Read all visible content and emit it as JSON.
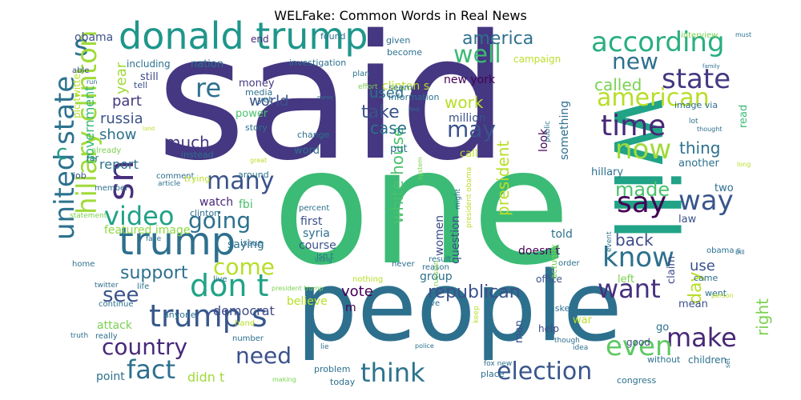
{
  "chart": {
    "title": "WELFake: Common Words in Real News"
  },
  "chart_data": {
    "type": "wordcloud",
    "title": "WELFake: Common Words in Real News",
    "words": [
      {
        "text": "said",
        "size": 215,
        "color": "#453781"
      },
      {
        "text": "one",
        "size": 200,
        "color": "#3bbb75"
      },
      {
        "text": "people",
        "size": 120,
        "color": "#2d708e"
      },
      {
        "text": "will",
        "size": 110,
        "color": "#20a386"
      },
      {
        "text": "donald trump",
        "size": 46,
        "color": "#1f968b"
      },
      {
        "text": "trump",
        "size": 48,
        "color": "#2d708e"
      },
      {
        "text": "trump s",
        "size": 38,
        "color": "#38588c"
      },
      {
        "text": "according",
        "size": 34,
        "color": "#29af7f"
      },
      {
        "text": "state",
        "size": 34,
        "color": "#453781"
      },
      {
        "text": "american",
        "size": 30,
        "color": "#b8de29"
      },
      {
        "text": "time",
        "size": 36,
        "color": "#482878"
      },
      {
        "text": "now",
        "size": 34,
        "color": "#a0da39"
      },
      {
        "text": "say",
        "size": 36,
        "color": "#440154"
      },
      {
        "text": "way",
        "size": 34,
        "color": "#39568c"
      },
      {
        "text": "know",
        "size": 34,
        "color": "#2d708e"
      },
      {
        "text": "want",
        "size": 32,
        "color": "#46307e"
      },
      {
        "text": "make",
        "size": 32,
        "color": "#482878"
      },
      {
        "text": "even",
        "size": 34,
        "color": "#5ec962"
      },
      {
        "text": "election",
        "size": 30,
        "color": "#39568c"
      },
      {
        "text": "think",
        "size": 32,
        "color": "#2c728e"
      },
      {
        "text": "fact",
        "size": 32,
        "color": "#2d708e"
      },
      {
        "text": "country",
        "size": 28,
        "color": "#482878"
      },
      {
        "text": "need",
        "size": 28,
        "color": "#3b528b"
      },
      {
        "text": "don t",
        "size": 38,
        "color": "#20a386"
      },
      {
        "text": "come",
        "size": 28,
        "color": "#b8de29"
      },
      {
        "text": "going",
        "size": 28,
        "color": "#2d708e"
      },
      {
        "text": "video",
        "size": 32,
        "color": "#1fa187"
      },
      {
        "text": "many",
        "size": 30,
        "color": "#3b528b"
      },
      {
        "text": "us",
        "size": 44,
        "color": "#472d7b"
      },
      {
        "text": "s",
        "size": 36,
        "color": "#2c728e"
      },
      {
        "text": "re",
        "size": 32,
        "color": "#2d708e"
      },
      {
        "text": "well",
        "size": 30,
        "color": "#3bbb75"
      },
      {
        "text": "new",
        "size": 28,
        "color": "#2d708e"
      },
      {
        "text": "may",
        "size": 28,
        "color": "#3b528b"
      },
      {
        "text": "united state",
        "size": 34,
        "color": "#2c728e"
      },
      {
        "text": "hillary clinton",
        "size": 34,
        "color": "#a0da39"
      },
      {
        "text": "c",
        "size": 26,
        "color": "#1f9e89"
      },
      {
        "text": "america",
        "size": 22,
        "color": "#2d708e"
      },
      {
        "text": "president",
        "size": 20,
        "color": "#b8de29"
      },
      {
        "text": "white house",
        "size": 20,
        "color": "#4ac16d"
      },
      {
        "text": "republican",
        "size": 22,
        "color": "#3b528b"
      },
      {
        "text": "see",
        "size": 26,
        "color": "#3b528b"
      },
      {
        "text": "support",
        "size": 22,
        "color": "#2d708e"
      },
      {
        "text": "made",
        "size": 24,
        "color": "#4ac16d"
      },
      {
        "text": "back",
        "size": 20,
        "color": "#3e4a89"
      },
      {
        "text": "called",
        "size": 20,
        "color": "#7ad151"
      },
      {
        "text": "work",
        "size": 20,
        "color": "#b8de29"
      },
      {
        "text": "case",
        "size": 20,
        "color": "#2c728e"
      },
      {
        "text": "take",
        "size": 22,
        "color": "#3b528b"
      },
      {
        "text": "used",
        "size": 18,
        "color": "#2d708e"
      },
      {
        "text": "world",
        "size": 18,
        "color": "#3b528b"
      },
      {
        "text": "part",
        "size": 18,
        "color": "#453781"
      },
      {
        "text": "russia",
        "size": 18,
        "color": "#3b528b"
      },
      {
        "text": "much",
        "size": 20,
        "color": "#453781"
      },
      {
        "text": "show",
        "size": 18,
        "color": "#2c728e"
      },
      {
        "text": "report",
        "size": 16,
        "color": "#2c728e"
      },
      {
        "text": "government",
        "size": 16,
        "color": "#35b779"
      },
      {
        "text": "year",
        "size": 18,
        "color": "#a0da39"
      },
      {
        "text": "thing",
        "size": 20,
        "color": "#2d708e"
      },
      {
        "text": "day",
        "size": 22,
        "color": "#b8de29"
      },
      {
        "text": "use",
        "size": 18,
        "color": "#3b528b"
      },
      {
        "text": "right",
        "size": 20,
        "color": "#7ad151"
      },
      {
        "text": "vote",
        "size": 18,
        "color": "#440154"
      },
      {
        "text": "democrat",
        "size": 16,
        "color": "#3e4a89"
      },
      {
        "text": "fbi",
        "size": 14,
        "color": "#4ac16d"
      },
      {
        "text": "watch",
        "size": 14,
        "color": "#482878"
      },
      {
        "text": "saying",
        "size": 14,
        "color": "#2d708e"
      },
      {
        "text": "featured image",
        "size": 14,
        "color": "#8fd744"
      },
      {
        "text": "didn t",
        "size": 16,
        "color": "#a0da39"
      },
      {
        "text": "point",
        "size": 14,
        "color": "#2d708e"
      },
      {
        "text": "attack",
        "size": 14,
        "color": "#7ad151"
      },
      {
        "text": "obama",
        "size": 14,
        "color": "#3b528b"
      },
      {
        "text": "end",
        "size": 12,
        "color": "#482878"
      },
      {
        "text": "found",
        "size": 11,
        "color": "#2d708e"
      },
      {
        "text": "money",
        "size": 13,
        "color": "#453781"
      },
      {
        "text": "still",
        "size": 13,
        "color": "#3e4a89"
      },
      {
        "text": "nation",
        "size": 13,
        "color": "#2d708e"
      },
      {
        "text": "including",
        "size": 12,
        "color": "#2d708e"
      },
      {
        "text": "clinton s",
        "size": 14,
        "color": "#b8de29"
      },
      {
        "text": "campaign",
        "size": 12,
        "color": "#b8de29"
      },
      {
        "text": "new york",
        "size": 14,
        "color": "#440154"
      },
      {
        "text": "million",
        "size": 14,
        "color": "#3b528b"
      },
      {
        "text": "look",
        "size": 14,
        "color": "#440154"
      },
      {
        "text": "something",
        "size": 14,
        "color": "#2d708e"
      },
      {
        "text": "first",
        "size": 14,
        "color": "#3b528b"
      },
      {
        "text": "syria",
        "size": 14,
        "color": "#2d708e"
      },
      {
        "text": "course",
        "size": 14,
        "color": "#3b528b"
      },
      {
        "text": "women",
        "size": 14,
        "color": "#3e4a89"
      },
      {
        "text": "question",
        "size": 14,
        "color": "#3b528b"
      },
      {
        "text": "group",
        "size": 14,
        "color": "#2c728e"
      },
      {
        "text": "believe",
        "size": 14,
        "color": "#b8de29"
      },
      {
        "text": "m",
        "size": 14,
        "color": "#440154"
      },
      {
        "text": "told",
        "size": 14,
        "color": "#2d708e"
      },
      {
        "text": "doesn t",
        "size": 14,
        "color": "#440154"
      },
      {
        "text": "hillary",
        "size": 13,
        "color": "#2d708e"
      },
      {
        "text": "another",
        "size": 13,
        "color": "#2d708e"
      },
      {
        "text": "two",
        "size": 13,
        "color": "#2d708e"
      },
      {
        "text": "law",
        "size": 13,
        "color": "#3b528b"
      },
      {
        "text": "claim",
        "size": 13,
        "color": "#3e4a89"
      },
      {
        "text": "left",
        "size": 13,
        "color": "#7ad151"
      },
      {
        "text": "mean",
        "size": 13,
        "color": "#3b528b"
      },
      {
        "text": "go",
        "size": 13,
        "color": "#2c728e"
      },
      {
        "text": "war",
        "size": 13,
        "color": "#b8de29"
      },
      {
        "text": "man",
        "size": 13,
        "color": "#3b528b"
      },
      {
        "text": "help",
        "size": 12,
        "color": "#3e4a89"
      },
      {
        "text": "good",
        "size": 12,
        "color": "#3e4a89"
      },
      {
        "text": "went",
        "size": 11,
        "color": "#2d708e"
      },
      {
        "text": "came",
        "size": 11,
        "color": "#2d708e"
      },
      {
        "text": "children",
        "size": 12,
        "color": "#2d708e"
      },
      {
        "text": "without",
        "size": 11,
        "color": "#2d708e"
      },
      {
        "text": "asked",
        "size": 11,
        "color": "#2d708e"
      },
      {
        "text": "office",
        "size": 12,
        "color": "#3b528b"
      },
      {
        "text": "order",
        "size": 10,
        "color": "#2d708e"
      },
      {
        "text": "actually",
        "size": 11,
        "color": "#7ad151"
      },
      {
        "text": "read",
        "size": 13,
        "color": "#3bbb75"
      },
      {
        "text": "congress",
        "size": 11,
        "color": "#2d708e"
      },
      {
        "text": "image via",
        "size": 11,
        "color": "#2d708e"
      },
      {
        "text": "interview",
        "size": 10,
        "color": "#7ad151"
      },
      {
        "text": "pic twitter",
        "size": 12,
        "color": "#b8de29"
      },
      {
        "text": "given",
        "size": 11,
        "color": "#2d708e"
      },
      {
        "text": "become",
        "size": 11,
        "color": "#2d708e"
      },
      {
        "text": "plan",
        "size": 10,
        "color": "#2d708e"
      },
      {
        "text": "investigation",
        "size": 11,
        "color": "#2d708e"
      },
      {
        "text": "yet",
        "size": 11,
        "color": "#2d708e"
      },
      {
        "text": "media",
        "size": 11,
        "color": "#2d708e"
      },
      {
        "text": "power",
        "size": 13,
        "color": "#4ac16d"
      },
      {
        "text": "story",
        "size": 11,
        "color": "#2d708e"
      },
      {
        "text": "change",
        "size": 11,
        "color": "#2d708e"
      },
      {
        "text": "word",
        "size": 13,
        "color": "#2d708e"
      },
      {
        "text": "put",
        "size": 13,
        "color": "#2d708e"
      },
      {
        "text": "call",
        "size": 13,
        "color": "#b8de29"
      },
      {
        "text": "seem",
        "size": 11,
        "color": "#2d708e"
      },
      {
        "text": "information",
        "size": 11,
        "color": "#2d708e"
      },
      {
        "text": "effort",
        "size": 9,
        "color": "#7ad151"
      },
      {
        "text": "tell",
        "size": 11,
        "color": "#3b528b"
      },
      {
        "text": "able",
        "size": 10,
        "color": "#3b528b"
      },
      {
        "text": "instead",
        "size": 11,
        "color": "#2d708e"
      },
      {
        "text": "already",
        "size": 10,
        "color": "#7ad151"
      },
      {
        "text": "far",
        "size": 11,
        "color": "#2d708e"
      },
      {
        "text": "job",
        "size": 11,
        "color": "#3b528b"
      },
      {
        "text": "comment",
        "size": 10,
        "color": "#2d708e"
      },
      {
        "text": "article",
        "size": 9,
        "color": "#2d708e"
      },
      {
        "text": "member",
        "size": 10,
        "color": "#2d708e"
      },
      {
        "text": "trying",
        "size": 11,
        "color": "#b8de29"
      },
      {
        "text": "around",
        "size": 11,
        "color": "#2d708e"
      },
      {
        "text": "clinton",
        "size": 11,
        "color": "#2d708e"
      },
      {
        "text": "statement",
        "size": 9,
        "color": "#7ad151"
      },
      {
        "text": "face",
        "size": 9,
        "color": "#2d708e"
      },
      {
        "text": "issue",
        "size": 11,
        "color": "#2d708e"
      },
      {
        "text": "home",
        "size": 10,
        "color": "#2d708e"
      },
      {
        "text": "twitter",
        "size": 9,
        "color": "#2d708e"
      },
      {
        "text": "life",
        "size": 10,
        "color": "#2d708e"
      },
      {
        "text": "live",
        "size": 10,
        "color": "#2d708e"
      },
      {
        "text": "continue",
        "size": 10,
        "color": "#2d708e"
      },
      {
        "text": "anyone",
        "size": 11,
        "color": "#2d708e"
      },
      {
        "text": "really",
        "size": 10,
        "color": "#2d708e"
      },
      {
        "text": "hand",
        "size": 10,
        "color": "#b8de29"
      },
      {
        "text": "number",
        "size": 10,
        "color": "#2d708e"
      },
      {
        "text": "truth",
        "size": 9,
        "color": "#2d708e"
      },
      {
        "text": "percent",
        "size": 10,
        "color": "#2d708e"
      },
      {
        "text": "isn t",
        "size": 10,
        "color": "#2d708e"
      },
      {
        "text": "using",
        "size": 8,
        "color": "#2d708e"
      },
      {
        "text": "president trump",
        "size": 8,
        "color": "#7ad151"
      },
      {
        "text": "nothing",
        "size": 10,
        "color": "#b8de29"
      },
      {
        "text": "never",
        "size": 10,
        "color": "#2d708e"
      },
      {
        "text": "reason",
        "size": 10,
        "color": "#2d708e"
      },
      {
        "text": "result",
        "size": 10,
        "color": "#2d708e"
      },
      {
        "text": "russian",
        "size": 9,
        "color": "#7ad151"
      },
      {
        "text": "give",
        "size": 10,
        "color": "#2d708e"
      },
      {
        "text": "might",
        "size": 9,
        "color": "#2d708e"
      },
      {
        "text": "president obama",
        "size": 9,
        "color": "#b8de29"
      },
      {
        "text": "public",
        "size": 9,
        "color": "#2d708e"
      },
      {
        "text": "police",
        "size": 8,
        "color": "#2d708e"
      },
      {
        "text": "problem",
        "size": 11,
        "color": "#2d708e"
      },
      {
        "text": "today",
        "size": 11,
        "color": "#2d708e"
      },
      {
        "text": "fox new",
        "size": 9,
        "color": "#2d708e"
      },
      {
        "text": "place",
        "size": 11,
        "color": "#2d708e"
      },
      {
        "text": "lie",
        "size": 9,
        "color": "#2d708e"
      },
      {
        "text": "making",
        "size": 8,
        "color": "#7ad151"
      },
      {
        "text": "though",
        "size": 9,
        "color": "#2d708e"
      },
      {
        "text": "idea",
        "size": 9,
        "color": "#2d708e"
      },
      {
        "text": "keep",
        "size": 9,
        "color": "#b8de29"
      },
      {
        "text": "event",
        "size": 9,
        "color": "#2d708e"
      },
      {
        "text": "obama s",
        "size": 10,
        "color": "#2d708e"
      },
      {
        "text": "bill",
        "size": 8,
        "color": "#2d708e"
      },
      {
        "text": "person",
        "size": 8,
        "color": "#b8de29"
      },
      {
        "text": "set",
        "size": 8,
        "color": "#2d708e"
      },
      {
        "text": "thought",
        "size": 8,
        "color": "#2d708e"
      },
      {
        "text": "long",
        "size": 8,
        "color": "#b8de29"
      },
      {
        "text": "lot",
        "size": 9,
        "color": "#2d708e"
      },
      {
        "text": "family",
        "size": 7,
        "color": "#2d708e"
      },
      {
        "text": "must",
        "size": 8,
        "color": "#2d708e"
      },
      {
        "text": "name",
        "size": 7,
        "color": "#2d708e"
      },
      {
        "text": "find",
        "size": 7,
        "color": "#2d708e"
      },
      {
        "text": "system",
        "size": 8,
        "color": "#7ad151"
      },
      {
        "text": "great",
        "size": 8,
        "color": "#b8de29"
      },
      {
        "text": "run",
        "size": 8,
        "color": "#2d708e"
      },
      {
        "text": "land",
        "size": 7,
        "color": "#b8de29"
      }
    ]
  }
}
